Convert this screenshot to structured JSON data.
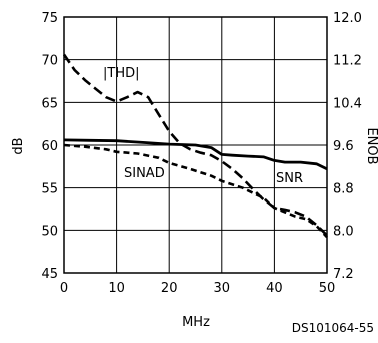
{
  "chart_data": {
    "type": "line",
    "xlabel": "MHz",
    "ylabel": "dB",
    "y2label": "ENOB",
    "xlim": [
      0,
      50
    ],
    "ylim": [
      45,
      75
    ],
    "y2lim": [
      7.2,
      12.0
    ],
    "x_ticks": [
      "0",
      "10",
      "20",
      "30",
      "40",
      "50"
    ],
    "y_ticks": [
      "45",
      "50",
      "55",
      "60",
      "65",
      "70",
      "75"
    ],
    "y2_ticks": [
      "7.2",
      "8.0",
      "8.8",
      "9.6",
      "10.4",
      "11.2",
      "12.0"
    ],
    "grid": true,
    "series": [
      {
        "name": "|THD|",
        "style": "dashed",
        "x": [
          0,
          2,
          4,
          6,
          8,
          10,
          12,
          14,
          16,
          18,
          20,
          22,
          24,
          26,
          28,
          30,
          32,
          34,
          36,
          38,
          40,
          42,
          44,
          46,
          48,
          50
        ],
        "y": [
          70.6,
          68.8,
          67.6,
          66.6,
          65.6,
          65.1,
          65.6,
          66.2,
          65.6,
          63.6,
          61.6,
          60.2,
          59.5,
          59.1,
          58.8,
          58.1,
          57.2,
          56.1,
          54.8,
          53.6,
          52.6,
          52.4,
          52.1,
          51.6,
          50.6,
          49.4
        ]
      },
      {
        "name": "SINAD",
        "style": "short-dashed",
        "x": [
          0,
          4,
          8,
          10,
          14,
          18,
          20,
          24,
          28,
          30,
          34,
          38,
          40,
          44,
          46,
          48,
          50
        ],
        "y": [
          60.0,
          59.8,
          59.5,
          59.2,
          59.0,
          58.5,
          57.9,
          57.2,
          56.4,
          55.8,
          55.0,
          53.8,
          52.6,
          51.6,
          51.3,
          50.5,
          49.2
        ]
      },
      {
        "name": "SNR",
        "style": "solid",
        "x": [
          0,
          5,
          10,
          15,
          20,
          25,
          28,
          30,
          32,
          35,
          38,
          40,
          42,
          45,
          48,
          50
        ],
        "y": [
          60.6,
          60.55,
          60.5,
          60.3,
          60.1,
          60.0,
          59.7,
          58.9,
          58.8,
          58.7,
          58.6,
          58.2,
          58.0,
          58.0,
          57.8,
          57.2
        ]
      }
    ],
    "annotations": [
      "|THD|",
      "SINAD",
      "SNR"
    ],
    "figure_id": "DS101064-55"
  }
}
